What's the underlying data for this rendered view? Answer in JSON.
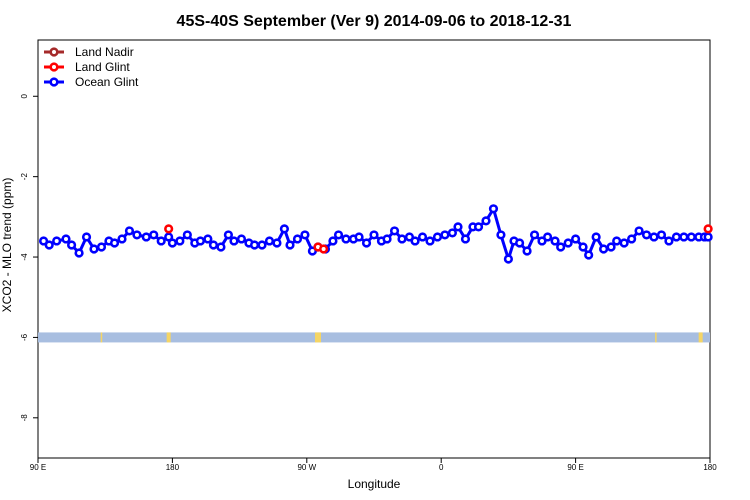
{
  "chart_data": {
    "type": "line",
    "title": "45S-40S September (Ver 9)   2014-09-06 to 2018-12-31",
    "xlabel": "Longitude",
    "ylabel": "XCO2 - MLO trend (ppm)",
    "xlim": [
      90,
      450
    ],
    "ylim": [
      -9,
      1.4
    ],
    "x_ticks": [
      {
        "value": 90,
        "label": "90 E"
      },
      {
        "value": 162,
        "label": "180"
      },
      {
        "value": 234,
        "label": "90 W"
      },
      {
        "value": 306,
        "label": "0"
      },
      {
        "value": 378,
        "label": "90 E"
      },
      {
        "value": 450,
        "label": "180"
      }
    ],
    "y_ticks": [
      {
        "value": 0,
        "label": "0"
      },
      {
        "value": -2,
        "label": "-2"
      },
      {
        "value": -4,
        "label": "-4"
      },
      {
        "value": -6,
        "label": "-6"
      },
      {
        "value": -8,
        "label": "-8"
      }
    ],
    "legend": {
      "position": "top-left",
      "entries": [
        {
          "name": "Land Nadir",
          "color": "#a52a2a"
        },
        {
          "name": "Land Glint",
          "color": "#ff0000"
        },
        {
          "name": "Ocean Glint",
          "color": "#0000ff"
        }
      ]
    },
    "series": [
      {
        "name": "Ocean Glint",
        "color": "#0000ff",
        "x": [
          93,
          96,
          100,
          105,
          108,
          112,
          116,
          120,
          124,
          128,
          131,
          135,
          139,
          143,
          148,
          152,
          156,
          160,
          162,
          166,
          170,
          174,
          177,
          181,
          184,
          188,
          192,
          195,
          199,
          203,
          206,
          210,
          214,
          218,
          222,
          225,
          229,
          233,
          237,
          240,
          244,
          248,
          251,
          255,
          259,
          262,
          266,
          270,
          274,
          277,
          281,
          285,
          289,
          292,
          296,
          300,
          304,
          308,
          312,
          315,
          319,
          323,
          326,
          330,
          334,
          338,
          342,
          345,
          348,
          352,
          356,
          360,
          363,
          367,
          370,
          374,
          378,
          382,
          385,
          389,
          393,
          397,
          400,
          404,
          408,
          412,
          416,
          420,
          424,
          428,
          432,
          436,
          440,
          444,
          447,
          449
        ],
        "y": [
          -3.6,
          -3.7,
          -3.6,
          -3.55,
          -3.7,
          -3.9,
          -3.5,
          -3.8,
          -3.75,
          -3.6,
          -3.65,
          -3.55,
          -3.35,
          -3.45,
          -3.5,
          -3.45,
          -3.6,
          -3.5,
          -3.65,
          -3.6,
          -3.45,
          -3.65,
          -3.6,
          -3.55,
          -3.7,
          -3.75,
          -3.45,
          -3.6,
          -3.55,
          -3.65,
          -3.7,
          -3.7,
          -3.6,
          -3.65,
          -3.3,
          -3.7,
          -3.55,
          -3.45,
          -3.85,
          -3.75,
          -3.8,
          -3.6,
          -3.45,
          -3.55,
          -3.55,
          -3.5,
          -3.65,
          -3.45,
          -3.6,
          -3.55,
          -3.35,
          -3.55,
          -3.5,
          -3.6,
          -3.5,
          -3.6,
          -3.5,
          -3.45,
          -3.4,
          -3.25,
          -3.55,
          -3.25,
          -3.25,
          -3.1,
          -2.8,
          -3.45,
          -4.05,
          -3.6,
          -3.65,
          -3.85,
          -3.45,
          -3.6,
          -3.5,
          -3.6,
          -3.75,
          -3.65,
          -3.55,
          -3.75,
          -3.95,
          -3.5,
          -3.8,
          -3.75,
          -3.6,
          -3.65,
          -3.55,
          -3.35,
          -3.45,
          -3.5,
          -3.45,
          -3.6,
          -3.5,
          -3.5,
          -3.5,
          -3.5,
          -3.5,
          -3.5
        ]
      },
      {
        "name": "Land Glint",
        "color": "#ff0000",
        "x": [
          160,
          240,
          243,
          449
        ],
        "y": [
          -3.3,
          -3.75,
          -3.8,
          -3.3
        ]
      }
    ],
    "land_strip": {
      "y": -6,
      "ocean_color": "#a8bee0",
      "land_color": "#f5d565"
    }
  }
}
